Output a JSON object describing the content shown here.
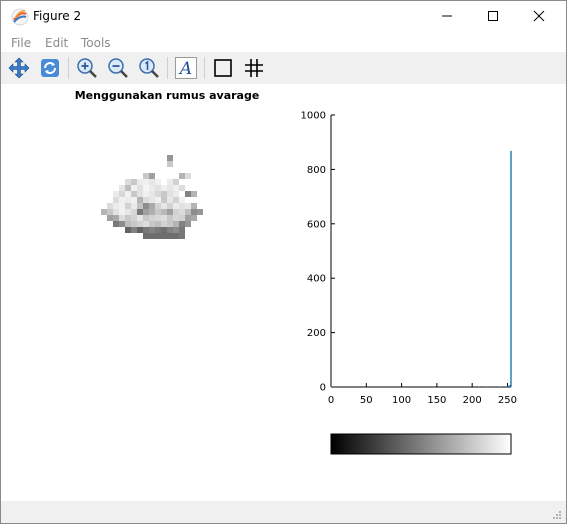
{
  "window": {
    "title": "Figure 2",
    "minimize_icon": "minimize-icon",
    "maximize_icon": "maximize-icon",
    "close_icon": "close-icon"
  },
  "menu": {
    "items": [
      "File",
      "Edit",
      "Tools"
    ]
  },
  "toolbar": {
    "buttons": [
      {
        "name": "pan-button",
        "icon": "pan-arrows-icon"
      },
      {
        "name": "rotate-button",
        "icon": "rotate-icon"
      },
      {
        "name": "zoom-in-button",
        "icon": "zoom-in-icon"
      },
      {
        "name": "zoom-out-button",
        "icon": "zoom-out-icon"
      },
      {
        "name": "zoom-reset-button",
        "icon": "zoom-one-icon"
      },
      {
        "name": "text-button",
        "icon": "text-a-icon"
      },
      {
        "name": "axes-box-button",
        "icon": "square-icon"
      },
      {
        "name": "grid-button",
        "icon": "grid-icon"
      }
    ]
  },
  "image_panel": {
    "title": "Menggunakan rumus avarage"
  },
  "chart_data": {
    "type": "bar",
    "x": [
      0,
      210,
      220,
      230,
      240,
      250,
      252,
      254,
      255
    ],
    "values": [
      2,
      1,
      1,
      1,
      2,
      3,
      5,
      8,
      868
    ],
    "xlim": [
      0,
      255
    ],
    "ylim": [
      0,
      1000
    ],
    "xticks": [
      0,
      50,
      100,
      150,
      200,
      250
    ],
    "yticks": [
      0,
      200,
      400,
      600,
      800,
      1000
    ],
    "series_color": "#1f77b4",
    "colorbar": {
      "min": 0,
      "max": 255,
      "from_color": "#000000",
      "to_color": "#ffffff"
    },
    "grid": false
  }
}
